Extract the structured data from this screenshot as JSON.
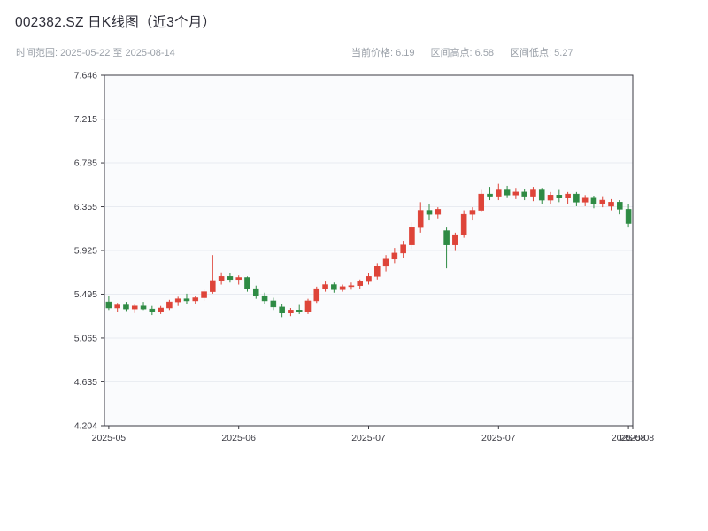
{
  "header": {
    "title": "002382.SZ 日K线图（近3个月）",
    "time_range": "时间范围: 2025-05-22 至 2025-08-14",
    "current_price": "当前价格: 6.19",
    "range_high": "区间高点: 6.58",
    "range_low": "区间低点: 5.27"
  },
  "chart_data": {
    "type": "candlestick",
    "title": "002382.SZ 日K线图（近3个月）",
    "symbol": "002382.SZ",
    "period": "daily",
    "date_range": [
      "2025-05-22",
      "2025-08-14"
    ],
    "current_price": 6.19,
    "range_high": 6.58,
    "range_low": 5.27,
    "up_color": "#de4439",
    "down_color": "#2e8b44",
    "grid": true,
    "legend": "none",
    "ylim": [
      4.204,
      7.646
    ],
    "y_ticks": [
      7.646,
      7.215,
      6.785,
      6.355,
      5.925,
      5.495,
      5.065,
      4.635,
      4.204
    ],
    "x_tick_labels": [
      "2025-05",
      "2025-06",
      "2025-07",
      "2025-07",
      "2025-08",
      "2025-08"
    ],
    "x_tick_indices": [
      0,
      15,
      30,
      45,
      60,
      61
    ],
    "dates": [
      "2025-05-22",
      "2025-05-23",
      "2025-05-26",
      "2025-05-27",
      "2025-05-28",
      "2025-05-29",
      "2025-05-30",
      "2025-06-02",
      "2025-06-03",
      "2025-06-04",
      "2025-06-05",
      "2025-06-06",
      "2025-06-09",
      "2025-06-10",
      "2025-06-11",
      "2025-06-12",
      "2025-06-13",
      "2025-06-16",
      "2025-06-17",
      "2025-06-18",
      "2025-06-19",
      "2025-06-20",
      "2025-06-23",
      "2025-06-24",
      "2025-06-25",
      "2025-06-26",
      "2025-06-27",
      "2025-06-30",
      "2025-07-01",
      "2025-07-02",
      "2025-07-03",
      "2025-07-04",
      "2025-07-07",
      "2025-07-08",
      "2025-07-09",
      "2025-07-10",
      "2025-07-11",
      "2025-07-14",
      "2025-07-15",
      "2025-07-16",
      "2025-07-17",
      "2025-07-18",
      "2025-07-21",
      "2025-07-22",
      "2025-07-23",
      "2025-07-24",
      "2025-07-25",
      "2025-07-28",
      "2025-07-29",
      "2025-07-30",
      "2025-07-31",
      "2025-08-01",
      "2025-08-04",
      "2025-08-05",
      "2025-08-06",
      "2025-08-07",
      "2025-08-08",
      "2025-08-11",
      "2025-08-12",
      "2025-08-13",
      "2025-08-14"
    ],
    "open": [
      5.42,
      5.36,
      5.39,
      5.35,
      5.38,
      5.35,
      5.32,
      5.36,
      5.42,
      5.45,
      5.43,
      5.46,
      5.52,
      5.63,
      5.67,
      5.64,
      5.66,
      5.55,
      5.48,
      5.43,
      5.37,
      5.31,
      5.34,
      5.32,
      5.43,
      5.55,
      5.59,
      5.54,
      5.57,
      5.58,
      5.62,
      5.67,
      5.77,
      5.84,
      5.9,
      5.98,
      6.15,
      6.32,
      6.28,
      6.12,
      5.98,
      6.08,
      6.28,
      6.32,
      6.48,
      6.45,
      6.52,
      6.47,
      6.5,
      6.45,
      6.52,
      6.42,
      6.47,
      6.44,
      6.48,
      6.4,
      6.44,
      6.38,
      6.36,
      6.4,
      6.33
    ],
    "high": [
      5.48,
      5.41,
      5.42,
      5.4,
      5.42,
      5.38,
      5.38,
      5.44,
      5.47,
      5.5,
      5.48,
      5.54,
      5.88,
      5.71,
      5.7,
      5.68,
      5.67,
      5.58,
      5.51,
      5.46,
      5.4,
      5.36,
      5.39,
      5.45,
      5.57,
      5.62,
      5.61,
      5.59,
      5.61,
      5.64,
      5.7,
      5.8,
      5.88,
      5.95,
      6.02,
      6.2,
      6.4,
      6.38,
      6.35,
      6.15,
      6.1,
      6.32,
      6.35,
      6.52,
      6.55,
      6.58,
      6.56,
      6.54,
      6.53,
      6.55,
      6.54,
      6.5,
      6.52,
      6.5,
      6.5,
      6.47,
      6.46,
      6.45,
      6.43,
      6.42,
      6.38
    ],
    "low": [
      5.34,
      5.32,
      5.33,
      5.31,
      5.34,
      5.29,
      5.3,
      5.34,
      5.38,
      5.4,
      5.4,
      5.43,
      5.5,
      5.59,
      5.61,
      5.59,
      5.52,
      5.45,
      5.4,
      5.34,
      5.27,
      5.28,
      5.3,
      5.3,
      5.41,
      5.52,
      5.51,
      5.52,
      5.54,
      5.55,
      5.59,
      5.64,
      5.72,
      5.8,
      5.85,
      5.94,
      6.1,
      6.22,
      6.24,
      5.75,
      5.92,
      6.05,
      6.22,
      6.3,
      6.42,
      6.42,
      6.44,
      6.43,
      6.42,
      6.41,
      6.38,
      6.38,
      6.4,
      6.38,
      6.36,
      6.36,
      6.34,
      6.35,
      6.32,
      6.28,
      6.15
    ],
    "close": [
      5.36,
      5.39,
      5.35,
      5.38,
      5.35,
      5.32,
      5.36,
      5.42,
      5.45,
      5.43,
      5.46,
      5.52,
      5.63,
      5.67,
      5.64,
      5.66,
      5.55,
      5.48,
      5.43,
      5.37,
      5.31,
      5.34,
      5.32,
      5.43,
      5.55,
      5.59,
      5.54,
      5.57,
      5.58,
      5.62,
      5.67,
      5.77,
      5.84,
      5.9,
      5.98,
      6.15,
      6.32,
      6.28,
      6.33,
      5.98,
      6.08,
      6.28,
      6.32,
      6.48,
      6.45,
      6.52,
      6.47,
      6.5,
      6.45,
      6.52,
      6.42,
      6.47,
      6.44,
      6.48,
      6.4,
      6.44,
      6.38,
      6.42,
      6.4,
      6.33,
      6.19
    ]
  }
}
